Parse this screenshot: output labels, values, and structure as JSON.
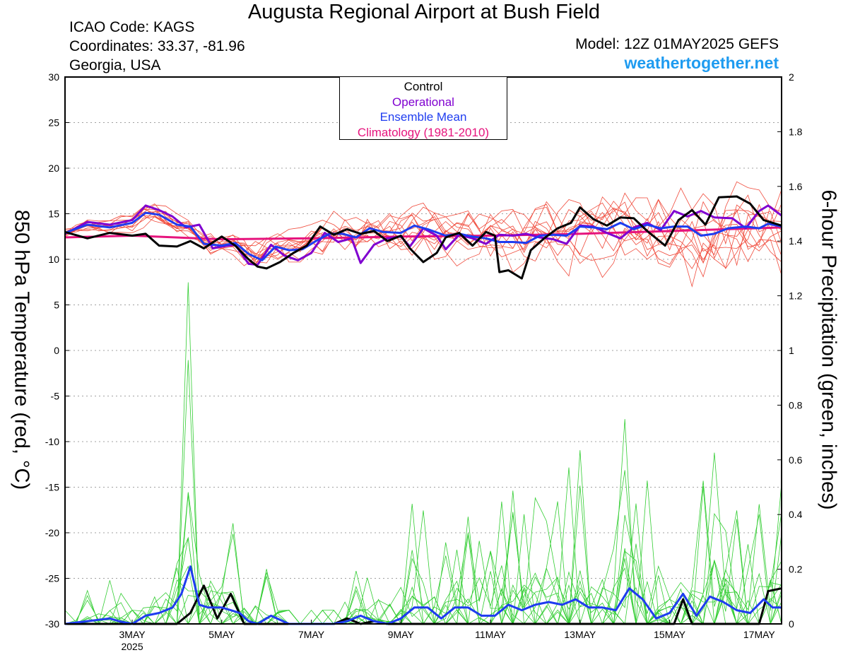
{
  "header": {
    "title": "Augusta Regional Airport at Bush Field",
    "icao": "ICAO Code: KAGS",
    "coordinates": "Coordinates: 33.37, -81.96",
    "region": "Georgia, USA",
    "model": "Model: 12Z 01MAY2025 GEFS",
    "website": "weathertogether.net"
  },
  "colors": {
    "control": "#000000",
    "operational": "#8000d0",
    "ensemble_mean": "#1e3cf0",
    "climatology": "#e6147d",
    "members_temp": "#f04b3c",
    "members_precip": "#32cd32",
    "website": "#1e9bf0"
  },
  "chart_data": {
    "type": "line",
    "title": "Augusta Regional Airport at Bush Field",
    "ylabel_left": "850 hPa Temperature (red, °C)",
    "ylabel_right": "6-hour Precipitation (green, inches)",
    "xlim_days": [
      1.5,
      17.5
    ],
    "ylim_left": [
      -30,
      30
    ],
    "ylim_right": [
      0,
      2
    ],
    "yticks_left": [
      "30",
      "25",
      "20",
      "15",
      "10",
      "5",
      "0",
      "-5",
      "-10",
      "-15",
      "-20",
      "-25",
      "-30"
    ],
    "yticks_right": [
      "2",
      "1.8",
      "1.6",
      "1.4",
      "1.2",
      "1",
      "0.8",
      "0.6",
      "0.4",
      "0.2",
      "0"
    ],
    "xticks": [
      {
        "day": 3,
        "label": "3MAY",
        "sublabel": "2025"
      },
      {
        "day": 5,
        "label": "5MAY",
        "sublabel": ""
      },
      {
        "day": 7,
        "label": "7MAY",
        "sublabel": ""
      },
      {
        "day": 9,
        "label": "9MAY",
        "sublabel": ""
      },
      {
        "day": 11,
        "label": "11MAY",
        "sublabel": ""
      },
      {
        "day": 13,
        "label": "13MAY",
        "sublabel": ""
      },
      {
        "day": 15,
        "label": "15MAY",
        "sublabel": ""
      },
      {
        "day": 17,
        "label": "17MAY",
        "sublabel": ""
      }
    ],
    "grid": "dotted horizontal",
    "legend": {
      "position": "top-center",
      "entries": [
        {
          "label": "Control",
          "color": "#000000"
        },
        {
          "label": "Operational",
          "color": "#8000d0"
        },
        {
          "label": "Ensemble Mean",
          "color": "#1e3cf0"
        },
        {
          "label": "Climatology (1981-2010)",
          "color": "#e6147d"
        }
      ]
    },
    "series_temp": [
      {
        "name": "Control",
        "color": "#000000",
        "width": 3,
        "points": [
          [
            1.5,
            13.0
          ],
          [
            2.0,
            12.3
          ],
          [
            2.5,
            12.9
          ],
          [
            3.0,
            12.6
          ],
          [
            3.3,
            12.8
          ],
          [
            3.6,
            11.5
          ],
          [
            4.0,
            11.4
          ],
          [
            4.3,
            12.0
          ],
          [
            4.6,
            11.2
          ],
          [
            5.0,
            12.5
          ],
          [
            5.3,
            11.5
          ],
          [
            5.6,
            10.0
          ],
          [
            5.8,
            9.2
          ],
          [
            6.0,
            9.0
          ],
          [
            6.3,
            9.7
          ],
          [
            6.6,
            10.7
          ],
          [
            6.9,
            11.5
          ],
          [
            7.2,
            13.6
          ],
          [
            7.5,
            12.7
          ],
          [
            7.8,
            13.3
          ],
          [
            8.1,
            12.8
          ],
          [
            8.4,
            13.1
          ],
          [
            8.7,
            12.0
          ],
          [
            9.0,
            12.6
          ],
          [
            9.2,
            11.2
          ],
          [
            9.5,
            9.7
          ],
          [
            9.8,
            10.7
          ],
          [
            10.0,
            12.4
          ],
          [
            10.3,
            12.9
          ],
          [
            10.6,
            11.5
          ],
          [
            10.9,
            13.0
          ],
          [
            11.1,
            12.6
          ],
          [
            11.2,
            8.6
          ],
          [
            11.4,
            8.8
          ],
          [
            11.7,
            7.9
          ],
          [
            11.9,
            11.0
          ],
          [
            12.2,
            12.3
          ],
          [
            12.5,
            13.4
          ],
          [
            12.8,
            14.0
          ],
          [
            13.0,
            15.7
          ],
          [
            13.3,
            14.4
          ],
          [
            13.6,
            13.7
          ],
          [
            13.9,
            14.6
          ],
          [
            14.2,
            14.5
          ],
          [
            14.5,
            13.1
          ],
          [
            14.9,
            11.5
          ],
          [
            15.2,
            14.3
          ],
          [
            15.5,
            15.4
          ],
          [
            15.8,
            13.8
          ],
          [
            16.1,
            16.8
          ],
          [
            16.5,
            16.9
          ],
          [
            16.8,
            16.1
          ],
          [
            17.1,
            14.3
          ],
          [
            17.5,
            13.7
          ]
        ]
      },
      {
        "name": "Operational",
        "color": "#8000d0",
        "width": 3,
        "points": [
          [
            1.5,
            12.8
          ],
          [
            2.0,
            14.1
          ],
          [
            2.5,
            13.8
          ],
          [
            3.0,
            14.3
          ],
          [
            3.3,
            15.9
          ],
          [
            3.6,
            15.4
          ],
          [
            3.9,
            14.7
          ],
          [
            4.2,
            13.5
          ],
          [
            4.5,
            13.8
          ],
          [
            4.8,
            11.2
          ],
          [
            5.0,
            11.4
          ],
          [
            5.3,
            11.6
          ],
          [
            5.6,
            9.5
          ],
          [
            5.8,
            9.4
          ],
          [
            6.1,
            11.6
          ],
          [
            6.4,
            10.4
          ],
          [
            6.7,
            9.9
          ],
          [
            7.0,
            10.7
          ],
          [
            7.3,
            12.9
          ],
          [
            7.6,
            11.9
          ],
          [
            7.9,
            12.3
          ],
          [
            8.1,
            9.6
          ],
          [
            8.4,
            11.6
          ],
          [
            8.7,
            12.3
          ],
          [
            9.0,
            12.5
          ],
          [
            9.2,
            11.4
          ],
          [
            9.5,
            13.4
          ],
          [
            9.8,
            12.6
          ],
          [
            10.0,
            11.1
          ],
          [
            10.3,
            12.7
          ],
          [
            10.6,
            12.3
          ],
          [
            10.9,
            11.7
          ],
          [
            11.2,
            12.7
          ],
          [
            11.5,
            12.6
          ],
          [
            11.8,
            12.8
          ],
          [
            12.1,
            12.4
          ],
          [
            12.4,
            12.2
          ],
          [
            12.7,
            11.7
          ],
          [
            13.0,
            13.7
          ],
          [
            13.3,
            13.6
          ],
          [
            13.6,
            12.9
          ],
          [
            13.9,
            12.3
          ],
          [
            14.2,
            13.5
          ],
          [
            14.5,
            14.0
          ],
          [
            14.8,
            13.2
          ],
          [
            15.1,
            15.3
          ],
          [
            15.4,
            14.7
          ],
          [
            15.7,
            15.3
          ],
          [
            16.0,
            14.6
          ],
          [
            16.4,
            14.5
          ],
          [
            16.7,
            13.4
          ],
          [
            17.0,
            15.3
          ],
          [
            17.2,
            15.9
          ],
          [
            17.5,
            14.8
          ]
        ]
      },
      {
        "name": "Ensemble Mean",
        "color": "#1e3cf0",
        "width": 3,
        "points": [
          [
            1.5,
            12.9
          ],
          [
            2.0,
            13.8
          ],
          [
            2.5,
            13.5
          ],
          [
            3.0,
            14.0
          ],
          [
            3.3,
            15.1
          ],
          [
            3.6,
            14.9
          ],
          [
            4.0,
            13.8
          ],
          [
            4.3,
            13.6
          ],
          [
            4.6,
            11.7
          ],
          [
            5.0,
            11.5
          ],
          [
            5.3,
            11.8
          ],
          [
            5.6,
            10.6
          ],
          [
            5.9,
            9.9
          ],
          [
            6.2,
            11.4
          ],
          [
            6.5,
            11.0
          ],
          [
            6.8,
            11.1
          ],
          [
            7.1,
            12.0
          ],
          [
            7.4,
            12.8
          ],
          [
            7.7,
            12.8
          ],
          [
            8.0,
            12.4
          ],
          [
            8.3,
            13.4
          ],
          [
            8.6,
            13.0
          ],
          [
            9.0,
            12.9
          ],
          [
            9.3,
            13.7
          ],
          [
            9.6,
            13.3
          ],
          [
            10.0,
            12.6
          ],
          [
            10.3,
            12.8
          ],
          [
            10.6,
            12.5
          ],
          [
            10.9,
            12.3
          ],
          [
            11.2,
            11.9
          ],
          [
            11.5,
            11.9
          ],
          [
            11.8,
            11.8
          ],
          [
            12.1,
            12.6
          ],
          [
            12.4,
            12.7
          ],
          [
            12.7,
            12.6
          ],
          [
            13.0,
            13.6
          ],
          [
            13.3,
            13.5
          ],
          [
            13.6,
            13.3
          ],
          [
            13.9,
            14.0
          ],
          [
            14.2,
            13.3
          ],
          [
            14.5,
            13.8
          ],
          [
            14.8,
            13.4
          ],
          [
            15.1,
            13.6
          ],
          [
            15.4,
            13.6
          ],
          [
            15.7,
            12.6
          ],
          [
            16.0,
            12.8
          ],
          [
            16.3,
            13.4
          ],
          [
            16.7,
            13.6
          ],
          [
            17.0,
            13.4
          ],
          [
            17.2,
            13.9
          ],
          [
            17.5,
            13.6
          ]
        ]
      },
      {
        "name": "Climatology (1981-2010)",
        "color": "#e6147d",
        "width": 3,
        "points": [
          [
            1.5,
            12.4
          ],
          [
            3.0,
            12.6
          ],
          [
            5.0,
            12.2
          ],
          [
            7.0,
            12.3
          ],
          [
            9.0,
            12.5
          ],
          [
            11.0,
            12.6
          ],
          [
            13.0,
            12.8
          ],
          [
            15.0,
            13.1
          ],
          [
            17.5,
            13.5
          ]
        ]
      }
    ],
    "series_precip": [
      {
        "name": "Control",
        "color": "#000000",
        "width": 3,
        "points": [
          [
            1.5,
            0.0
          ],
          [
            4.0,
            0.0
          ],
          [
            4.3,
            0.04
          ],
          [
            4.6,
            0.14
          ],
          [
            4.9,
            0.02
          ],
          [
            5.2,
            0.11
          ],
          [
            5.5,
            0.0
          ],
          [
            7.5,
            0.0
          ],
          [
            7.8,
            0.02
          ],
          [
            8.1,
            0.0
          ],
          [
            8.4,
            0.01
          ],
          [
            8.7,
            0.0
          ],
          [
            14.8,
            0.0
          ],
          [
            15.1,
            0.0
          ],
          [
            15.3,
            0.09
          ],
          [
            15.5,
            0.0
          ],
          [
            16.8,
            0.0
          ],
          [
            17.0,
            0.0
          ],
          [
            17.2,
            0.12
          ],
          [
            17.5,
            0.13
          ]
        ]
      },
      {
        "name": "Ensemble Mean",
        "color": "#1e3cf0",
        "width": 3,
        "points": [
          [
            1.5,
            0.0
          ],
          [
            2.0,
            0.01
          ],
          [
            2.5,
            0.02
          ],
          [
            2.7,
            0.01
          ],
          [
            3.0,
            0.0
          ],
          [
            3.3,
            0.03
          ],
          [
            3.6,
            0.04
          ],
          [
            3.9,
            0.06
          ],
          [
            4.1,
            0.11
          ],
          [
            4.3,
            0.21
          ],
          [
            4.5,
            0.07
          ],
          [
            4.7,
            0.06
          ],
          [
            5.0,
            0.06
          ],
          [
            5.2,
            0.05
          ],
          [
            5.4,
            0.04
          ],
          [
            5.6,
            0.01
          ],
          [
            5.8,
            0.0
          ],
          [
            6.1,
            0.03
          ],
          [
            6.5,
            0.0
          ],
          [
            7.0,
            0.0
          ],
          [
            7.5,
            0.0
          ],
          [
            7.8,
            0.01
          ],
          [
            8.1,
            0.03
          ],
          [
            8.4,
            0.01
          ],
          [
            8.7,
            0.0
          ],
          [
            9.0,
            0.02
          ],
          [
            9.3,
            0.06
          ],
          [
            9.6,
            0.06
          ],
          [
            9.9,
            0.02
          ],
          [
            10.2,
            0.06
          ],
          [
            10.5,
            0.06
          ],
          [
            10.8,
            0.03
          ],
          [
            11.1,
            0.03
          ],
          [
            11.4,
            0.07
          ],
          [
            11.7,
            0.05
          ],
          [
            12.0,
            0.07
          ],
          [
            12.3,
            0.08
          ],
          [
            12.6,
            0.07
          ],
          [
            12.9,
            0.09
          ],
          [
            13.2,
            0.06
          ],
          [
            13.5,
            0.06
          ],
          [
            13.8,
            0.05
          ],
          [
            14.1,
            0.13
          ],
          [
            14.4,
            0.09
          ],
          [
            14.7,
            0.02
          ],
          [
            15.0,
            0.04
          ],
          [
            15.3,
            0.11
          ],
          [
            15.6,
            0.03
          ],
          [
            15.9,
            0.1
          ],
          [
            16.2,
            0.08
          ],
          [
            16.5,
            0.05
          ],
          [
            16.8,
            0.04
          ],
          [
            17.1,
            0.09
          ],
          [
            17.3,
            0.06
          ],
          [
            17.5,
            0.06
          ]
        ]
      }
    ],
    "member_count": 12
  }
}
